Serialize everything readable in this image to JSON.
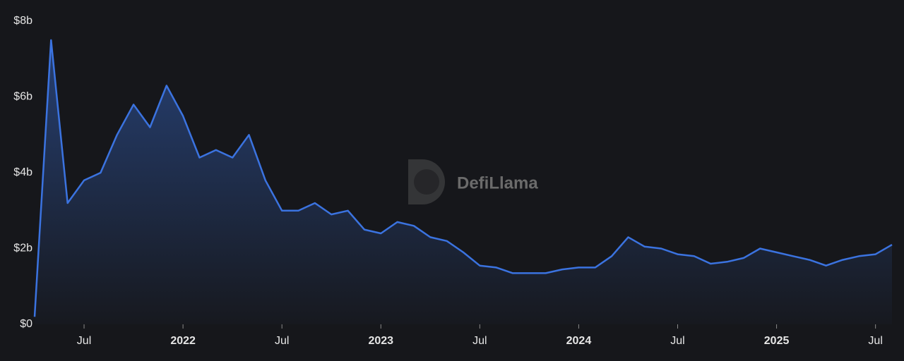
{
  "chart_data": {
    "type": "area",
    "watermark": "DefiLlama",
    "x": [
      "2021-04",
      "2021-05",
      "2021-06",
      "2021-07",
      "2021-08",
      "2021-09",
      "2021-10",
      "2021-11",
      "2021-12",
      "2022-01",
      "2022-02",
      "2022-03",
      "2022-04",
      "2022-05",
      "2022-06",
      "2022-07",
      "2022-08",
      "2022-09",
      "2022-10",
      "2022-11",
      "2022-12",
      "2023-01",
      "2023-02",
      "2023-03",
      "2023-04",
      "2023-05",
      "2023-06",
      "2023-07",
      "2023-08",
      "2023-09",
      "2023-10",
      "2023-11",
      "2023-12",
      "2024-01",
      "2024-02",
      "2024-03",
      "2024-04",
      "2024-05",
      "2024-06",
      "2024-07",
      "2024-08",
      "2024-09",
      "2024-10",
      "2024-11",
      "2024-12",
      "2025-01",
      "2025-02",
      "2025-03",
      "2025-04",
      "2025-05",
      "2025-06",
      "2025-07",
      "2025-08"
    ],
    "series": [
      {
        "color": "#3b73e0",
        "values": [
          200000000,
          7500000000,
          3200000000,
          3800000000,
          4000000000,
          5000000000,
          5800000000,
          5200000000,
          6300000000,
          5500000000,
          4400000000,
          4600000000,
          4400000000,
          5000000000,
          3800000000,
          3000000000,
          3000000000,
          3200000000,
          2900000000,
          3000000000,
          2500000000,
          2400000000,
          2700000000,
          2600000000,
          2300000000,
          2200000000,
          1900000000,
          1550000000,
          1500000000,
          1350000000,
          1350000000,
          1350000000,
          1450000000,
          1500000000,
          1500000000,
          1800000000,
          2300000000,
          2050000000,
          2000000000,
          1850000000,
          1800000000,
          1600000000,
          1650000000,
          1750000000,
          2000000000,
          1900000000,
          1800000000,
          1700000000,
          1550000000,
          1700000000,
          1800000000,
          1850000000,
          2100000000
        ]
      }
    ],
    "xlim": [
      "2021-04",
      "2025-08"
    ],
    "xticks": [
      {
        "value": "2021-07",
        "label": "Jul"
      },
      {
        "value": "2022-01",
        "label": "2022"
      },
      {
        "value": "2022-07",
        "label": "Jul"
      },
      {
        "value": "2023-01",
        "label": "2023"
      },
      {
        "value": "2023-07",
        "label": "Jul"
      },
      {
        "value": "2024-01",
        "label": "2024"
      },
      {
        "value": "2024-07",
        "label": "Jul"
      },
      {
        "value": "2025-01",
        "label": "2025"
      },
      {
        "value": "2025-07",
        "label": "Jul"
      }
    ],
    "ylim": [
      0,
      8000000000
    ],
    "yticks": [
      {
        "value": 0,
        "label": "$0"
      },
      {
        "value": 2000000000,
        "label": "$2b"
      },
      {
        "value": 4000000000,
        "label": "$4b"
      },
      {
        "value": 6000000000,
        "label": "$6b"
      },
      {
        "value": 8000000000,
        "label": "$8b"
      }
    ],
    "grid": false
  }
}
